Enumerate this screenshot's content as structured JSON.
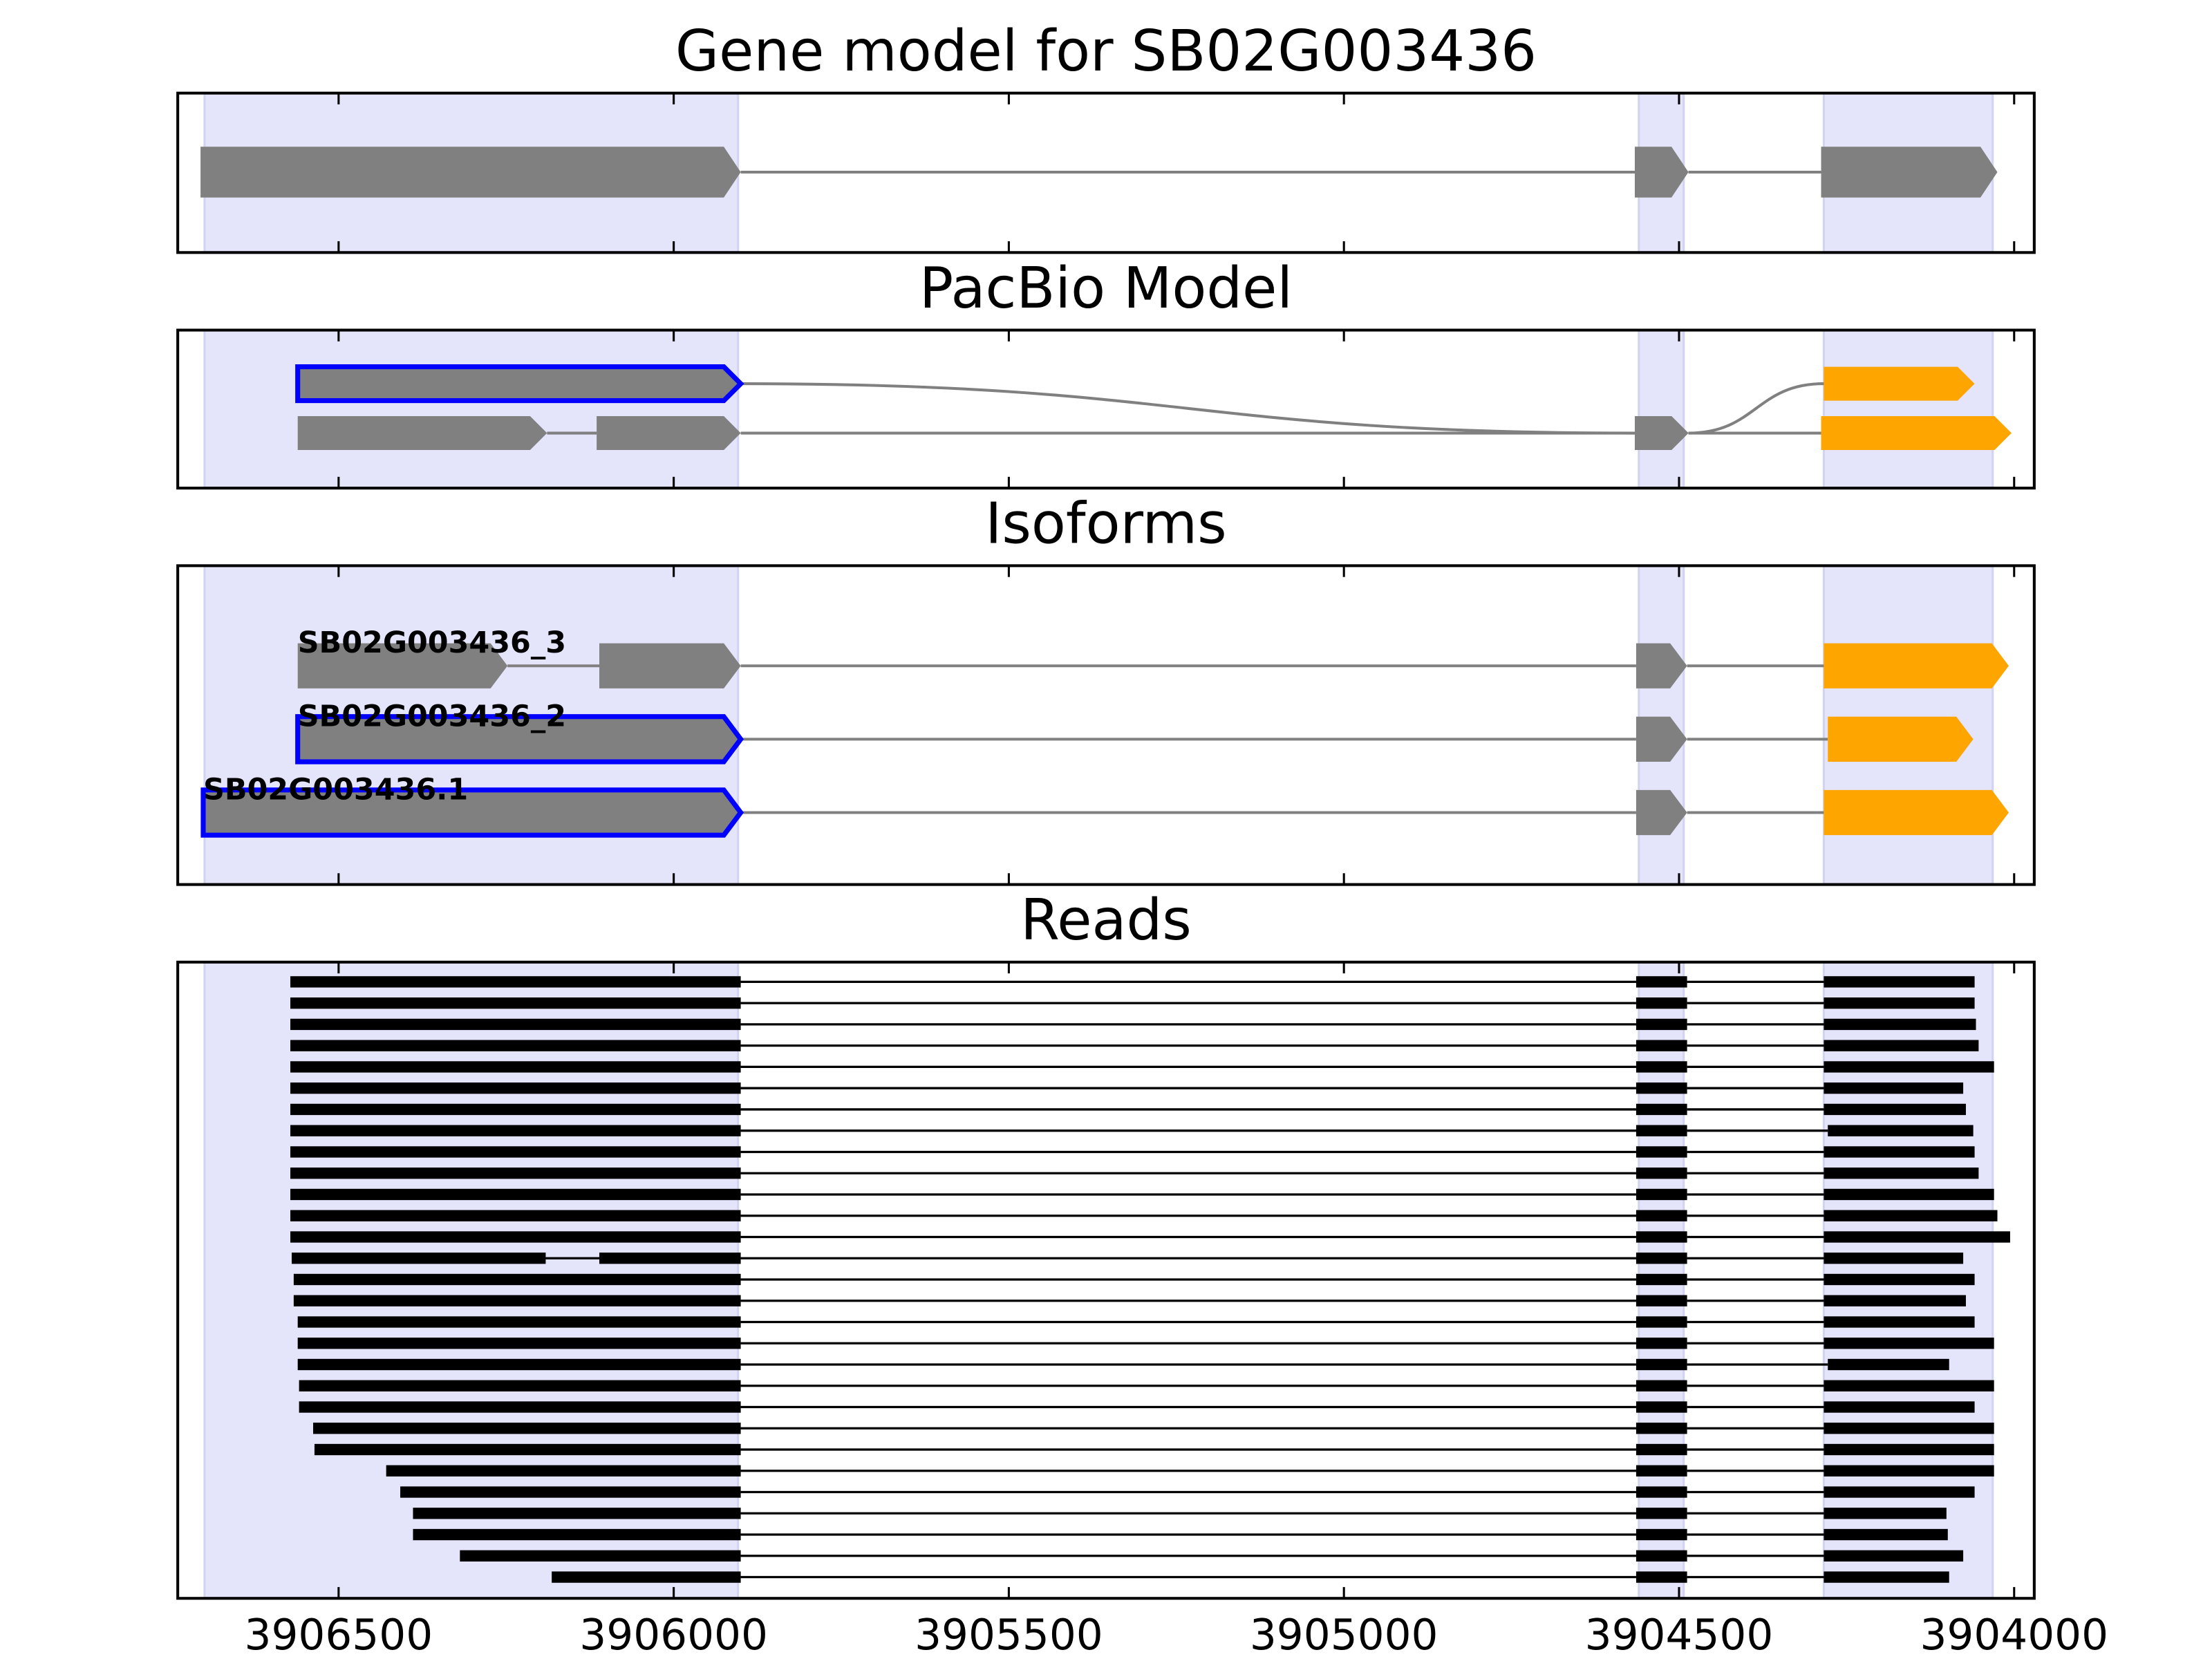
{
  "regions": [
    [
      3906700,
      3905904
    ],
    [
      3904560,
      3904493
    ],
    [
      3904284,
      3904032
    ]
  ],
  "chart_data": [
    {
      "type": "gene_track",
      "title": "Gene model for SB02G003436",
      "xlim": [
        3906740,
        3903970
      ],
      "xticks": [
        3906500,
        3906000,
        3905500,
        3905000,
        3904500,
        3904000
      ],
      "show_tick_labels": false,
      "transcripts": [
        {
          "color": "#808080",
          "exons": [
            [
              3906706,
              3905900,
              0
            ],
            [
              3904566,
              3904486,
              0
            ],
            [
              3904288,
              3904025,
              0
            ]
          ]
        }
      ]
    },
    {
      "type": "gene_track",
      "title": "PacBio Model",
      "xlim": [
        3906740,
        3903970
      ],
      "xticks": [
        3906500,
        3906000,
        3905500,
        3905000,
        3904500,
        3904000
      ],
      "show_tick_labels": false,
      "transcripts": [
        {
          "color": "#808080",
          "exons": [
            [
              3906561,
              3905900,
              0,
              "#808080",
              "#0000ff"
            ],
            [
              3904566,
              3904486,
              1,
              "#808080"
            ],
            [
              3904284,
              3904059,
              0,
              "#ffa500"
            ]
          ]
        },
        {
          "color": "#808080",
          "exons": [
            [
              3906561,
              3906189,
              1,
              "#808080"
            ],
            [
              3906115,
              3905900,
              1,
              "#808080"
            ],
            [
              3904566,
              3904486,
              1,
              "#808080"
            ],
            [
              3904288,
              3904004,
              1,
              "#ffa500"
            ]
          ]
        }
      ]
    },
    {
      "type": "gene_track",
      "title": "Isoforms",
      "xlim": [
        3906740,
        3903970
      ],
      "xticks": [
        3906500,
        3906000,
        3905500,
        3905000,
        3904500,
        3904000
      ],
      "show_tick_labels": false,
      "transcripts": [
        {
          "label": "SB02G003436_3",
          "exons": [
            [
              3906561,
              3906248,
              0,
              "#808080"
            ],
            [
              3906111,
              3905900,
              0,
              "#808080"
            ],
            [
              3904564,
              3904488,
              0,
              "#808080"
            ],
            [
              3904284,
              3904008,
              0,
              "#ffa500"
            ]
          ]
        },
        {
          "label": "SB02G003436_2",
          "exons": [
            [
              3906561,
              3905900,
              1,
              "#808080",
              "#0000ff"
            ],
            [
              3904564,
              3904488,
              1,
              "#808080"
            ],
            [
              3904278,
              3904061,
              1,
              "#ffa500"
            ]
          ]
        },
        {
          "label": "SB02G003436.1",
          "exons": [
            [
              3906702,
              3905900,
              2,
              "#808080",
              "#0000ff"
            ],
            [
              3904564,
              3904488,
              2,
              "#808080"
            ],
            [
              3904284,
              3904008,
              2,
              "#ffa500"
            ]
          ]
        }
      ]
    },
    {
      "type": "reads",
      "title": "Reads",
      "color": "#000000",
      "xlim": [
        3906740,
        3903970
      ],
      "xticks": [
        3906500,
        3906000,
        3905500,
        3905000,
        3904500,
        3904000
      ],
      "show_tick_labels": true,
      "reads": [
        [
          [
            3906572,
            3905900
          ],
          [
            3904564,
            3904488
          ],
          [
            3904284,
            3904059
          ]
        ],
        [
          [
            3906572,
            3905900
          ],
          [
            3904564,
            3904488
          ],
          [
            3904284,
            3904059
          ]
        ],
        [
          [
            3906572,
            3905900
          ],
          [
            3904564,
            3904488
          ],
          [
            3904284,
            3904057
          ]
        ],
        [
          [
            3906572,
            3905900
          ],
          [
            3904564,
            3904488
          ],
          [
            3904284,
            3904053
          ]
        ],
        [
          [
            3906572,
            3905900
          ],
          [
            3904564,
            3904488
          ],
          [
            3904284,
            3904030
          ]
        ],
        [
          [
            3906572,
            3905900
          ],
          [
            3904564,
            3904488
          ],
          [
            3904284,
            3904076
          ]
        ],
        [
          [
            3906572,
            3905900
          ],
          [
            3904564,
            3904488
          ],
          [
            3904284,
            3904072
          ]
        ],
        [
          [
            3906572,
            3905900
          ],
          [
            3904564,
            3904488
          ],
          [
            3904278,
            3904061
          ]
        ],
        [
          [
            3906572,
            3905900
          ],
          [
            3904564,
            3904488
          ],
          [
            3904284,
            3904059
          ]
        ],
        [
          [
            3906572,
            3905900
          ],
          [
            3904564,
            3904488
          ],
          [
            3904284,
            3904053
          ]
        ],
        [
          [
            3906572,
            3905900
          ],
          [
            3904564,
            3904488
          ],
          [
            3904284,
            3904030
          ]
        ],
        [
          [
            3906572,
            3905900
          ],
          [
            3904564,
            3904488
          ],
          [
            3904284,
            3904025
          ]
        ],
        [
          [
            3906572,
            3905900
          ],
          [
            3904564,
            3904488
          ],
          [
            3904284,
            3904006
          ]
        ],
        [
          [
            3906570,
            3906191
          ],
          [
            3906111,
            3905900
          ],
          [
            3904564,
            3904488
          ],
          [
            3904284,
            3904076
          ]
        ],
        [
          [
            3906567,
            3905900
          ],
          [
            3904564,
            3904488
          ],
          [
            3904284,
            3904059
          ]
        ],
        [
          [
            3906567,
            3905900
          ],
          [
            3904564,
            3904488
          ],
          [
            3904284,
            3904072
          ]
        ],
        [
          [
            3906561,
            3905900
          ],
          [
            3904564,
            3904488
          ],
          [
            3904284,
            3904059
          ]
        ],
        [
          [
            3906561,
            3905900
          ],
          [
            3904564,
            3904488
          ],
          [
            3904284,
            3904030
          ]
        ],
        [
          [
            3906561,
            3905900
          ],
          [
            3904564,
            3904488
          ],
          [
            3904278,
            3904097
          ]
        ],
        [
          [
            3906559,
            3905900
          ],
          [
            3904564,
            3904488
          ],
          [
            3904284,
            3904030
          ]
        ],
        [
          [
            3906559,
            3905900
          ],
          [
            3904564,
            3904488
          ],
          [
            3904284,
            3904059
          ]
        ],
        [
          [
            3906538,
            3905900
          ],
          [
            3904564,
            3904488
          ],
          [
            3904284,
            3904030
          ]
        ],
        [
          [
            3906536,
            3905900
          ],
          [
            3904564,
            3904488
          ],
          [
            3904284,
            3904030
          ]
        ],
        [
          [
            3906429,
            3905900
          ],
          [
            3904564,
            3904488
          ],
          [
            3904284,
            3904030
          ]
        ],
        [
          [
            3906408,
            3905900
          ],
          [
            3904564,
            3904488
          ],
          [
            3904284,
            3904059
          ]
        ],
        [
          [
            3906389,
            3905900
          ],
          [
            3904564,
            3904488
          ],
          [
            3904284,
            3904101
          ]
        ],
        [
          [
            3906389,
            3905900
          ],
          [
            3904564,
            3904488
          ],
          [
            3904284,
            3904099
          ]
        ],
        [
          [
            3906319,
            3905900
          ],
          [
            3904564,
            3904488
          ],
          [
            3904284,
            3904076
          ]
        ],
        [
          [
            3906182,
            3905900
          ],
          [
            3904564,
            3904488
          ],
          [
            3904284,
            3904097
          ]
        ]
      ]
    }
  ]
}
